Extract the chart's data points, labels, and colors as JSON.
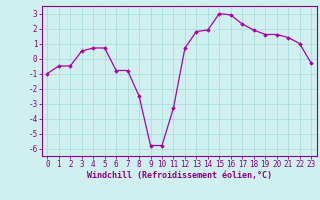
{
  "x": [
    0,
    1,
    2,
    3,
    4,
    5,
    6,
    7,
    8,
    9,
    10,
    11,
    12,
    13,
    14,
    15,
    16,
    17,
    18,
    19,
    20,
    21,
    22,
    23
  ],
  "y": [
    -1,
    -0.5,
    -0.5,
    0.5,
    0.7,
    0.7,
    -0.8,
    -0.8,
    -2.5,
    -5.8,
    -5.8,
    -3.3,
    0.7,
    1.8,
    1.9,
    3.0,
    2.9,
    2.3,
    1.9,
    1.6,
    1.6,
    1.4,
    1.0,
    -0.3
  ],
  "line_color": "#aa00aa",
  "marker": "D",
  "marker_size": 1.8,
  "line_width": 0.9,
  "background_color": "#d0f0f0",
  "grid_color": "#aadddd",
  "xlabel": "Windchill (Refroidissement éolien,°C)",
  "xlim": [
    -0.5,
    23.5
  ],
  "ylim": [
    -6.5,
    3.5
  ],
  "yticks": [
    -6,
    -5,
    -4,
    -3,
    -2,
    -1,
    0,
    1,
    2,
    3
  ],
  "xticks": [
    0,
    1,
    2,
    3,
    4,
    5,
    6,
    7,
    8,
    9,
    10,
    11,
    12,
    13,
    14,
    15,
    16,
    17,
    18,
    19,
    20,
    21,
    22,
    23
  ],
  "tick_color": "#880088",
  "tick_fontsize": 5.5,
  "xlabel_fontsize": 6.0,
  "spine_color": "#880088",
  "spine_lw": 0.8
}
